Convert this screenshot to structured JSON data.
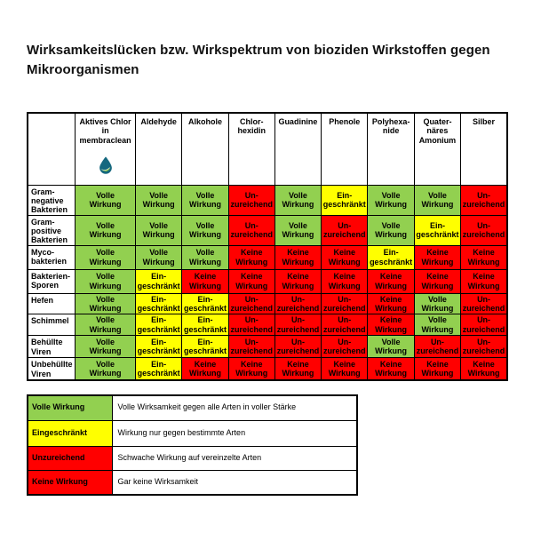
{
  "title": "Wirksamkeitslücken bzw. Wirkspektrum von bioziden Wirkstoffen gegen Mikroorganismen",
  "colors": {
    "full_effect_green": "#92d050",
    "limited_yellow": "#ffff00",
    "insufficient_red": "#ff0000",
    "none_red": "#ff0000",
    "border_black": "#000000",
    "drop_teal": "#15687f",
    "leaf_green": "#8dc63f"
  },
  "statuses": {
    "V": {
      "label": "Volle\nWirkung",
      "color": "#92d050"
    },
    "E": {
      "label": "Ein-\ngeschränkt",
      "color": "#ffff00"
    },
    "U": {
      "label": "Un-\nzureichend",
      "color": "#ff0000"
    },
    "K": {
      "label": "Keine\nWirkung",
      "color": "#ff0000"
    }
  },
  "table": {
    "columns": [
      {
        "id": "aktives-chlor",
        "label": "Aktives Chlor\nin\nmembraclean",
        "icon": "membraclean-drop-icon"
      },
      {
        "id": "aldehyde",
        "label": "Aldehyde"
      },
      {
        "id": "alkohole",
        "label": "Alkohole"
      },
      {
        "id": "chlorhexidin",
        "label": "Chlor-\nhexidin"
      },
      {
        "id": "guadinine",
        "label": "Guadinine"
      },
      {
        "id": "phenole",
        "label": "Phenole"
      },
      {
        "id": "polyhexanide",
        "label": "Polyhexa-\nnide"
      },
      {
        "id": "quaternaeres-amonium",
        "label": "Quater-\nnäres\nAmonium"
      },
      {
        "id": "silber",
        "label": "Silber"
      }
    ],
    "rows": [
      {
        "label": "Gram-\nnegative\nBakterien",
        "cells": [
          "V",
          "V",
          "V",
          "U",
          "V",
          "E",
          "V",
          "V",
          "U"
        ]
      },
      {
        "label": "Gram-\npositive\nBakterien",
        "cells": [
          "V",
          "V",
          "V",
          "U",
          "V",
          "U",
          "V",
          "E",
          "U"
        ]
      },
      {
        "label": "Myco-\nbakterien",
        "cells": [
          "V",
          "V",
          "V",
          "K",
          "K",
          "K",
          "E",
          "K",
          "K"
        ]
      },
      {
        "label": "Bakterien-\nSporen",
        "cells": [
          "V",
          "E",
          "K",
          "K",
          "K",
          "K",
          "K",
          "K",
          "K"
        ]
      },
      {
        "label": "Hefen",
        "cells": [
          "V",
          "E",
          "E",
          "U",
          "U",
          "U",
          "K",
          "V",
          "U"
        ]
      },
      {
        "label": "Schimmel",
        "cells": [
          "V",
          "E",
          "E",
          "U",
          "U",
          "U",
          "K",
          "V",
          "U"
        ]
      },
      {
        "label": "Behüllte\nViren",
        "cells": [
          "V",
          "E",
          "E",
          "U",
          "U",
          "U",
          "V",
          "U",
          "U"
        ]
      },
      {
        "label": "Unbehüllte\nViren",
        "cells": [
          "V",
          "E",
          "K",
          "K",
          "K",
          "K",
          "K",
          "K",
          "K"
        ]
      }
    ]
  },
  "legend": {
    "rows": [
      {
        "label": "Volle Wirkung",
        "color": "#92d050",
        "description": "Volle Wirksamkeit gegen alle Arten in voller Stärke"
      },
      {
        "label": "Eingeschränkt",
        "color": "#ffff00",
        "description": "Wirkung nur gegen bestimmte Arten"
      },
      {
        "label": "Unzureichend",
        "color": "#ff0000",
        "description": "Schwache Wirkung auf vereinzelte Arten"
      },
      {
        "label": "Keine Wirkung",
        "color": "#ff0000",
        "description": "Gar keine Wirksamkeit"
      }
    ]
  }
}
